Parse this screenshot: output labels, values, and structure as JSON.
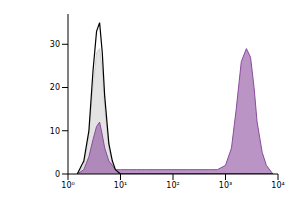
{
  "chart_data": {
    "type": "histogram",
    "log": "x",
    "grid": false,
    "x": [
      1.5,
      2,
      2.5,
      3,
      3.5,
      4,
      4.5,
      5,
      6,
      7,
      8,
      10,
      15,
      20,
      30,
      50,
      100,
      200,
      300,
      500,
      700,
      1000,
      1300,
      1600,
      2000,
      2500,
      3000,
      3500,
      4000,
      5000,
      6000,
      8000
    ],
    "xlim": [
      1,
      10000
    ],
    "xticks": [
      {
        "value": 1,
        "label": "10⁰"
      },
      {
        "value": 10,
        "label": "10¹"
      },
      {
        "value": 100,
        "label": "10²"
      },
      {
        "value": 1000,
        "label": "10³"
      },
      {
        "value": 10000,
        "label": "10⁴"
      }
    ],
    "ylim": [
      0,
      37
    ],
    "yticks": [
      0,
      10,
      20,
      30
    ],
    "series": [
      {
        "type": "area",
        "color": "#d0d0d0",
        "values": [
          0,
          2,
          9,
          20,
          28,
          29,
          24,
          15,
          6,
          2,
          1,
          0,
          0,
          0,
          0,
          0,
          0,
          0,
          0,
          0,
          0,
          0,
          0,
          0,
          0,
          0,
          0,
          0,
          0,
          0,
          0,
          0
        ]
      },
      {
        "type": "area",
        "color": "#8a4c9c",
        "values": [
          0,
          1,
          4,
          8,
          11,
          12,
          9,
          6,
          3,
          2,
          1,
          1,
          1,
          1,
          1,
          1,
          1,
          1,
          1,
          1,
          1,
          2,
          6,
          15,
          26,
          29,
          27,
          20,
          12,
          5,
          2,
          0
        ]
      },
      {
        "type": "line",
        "color": "#000000",
        "values": [
          0,
          3,
          10,
          24,
          33,
          35,
          28,
          18,
          7,
          3,
          1,
          0,
          0,
          0,
          0,
          0,
          0,
          0,
          0,
          0,
          0,
          0,
          0,
          0,
          0,
          0,
          0,
          0,
          0,
          0,
          0,
          0
        ]
      }
    ]
  }
}
